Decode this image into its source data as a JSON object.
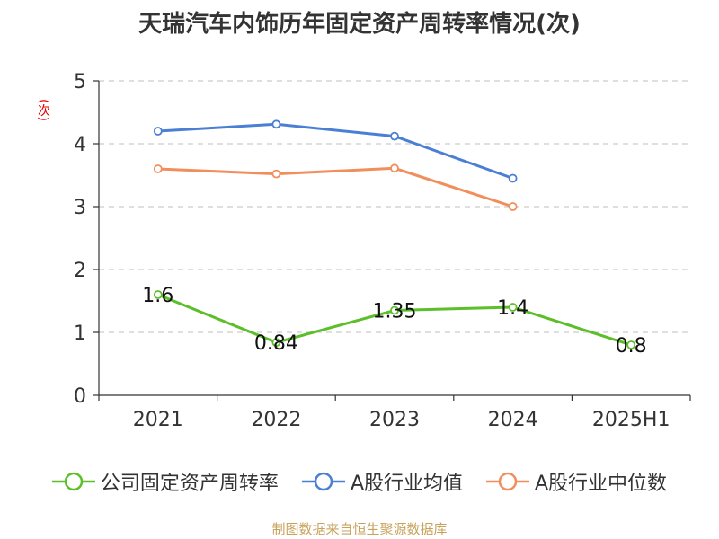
{
  "title": "天瑞汽车内饰历年固定资产周转率情况(次)",
  "source": "制图数据来自恒生聚源数据库",
  "chart_data": {
    "type": "line",
    "title": "天瑞汽车内饰历年固定资产周转率情况(次)",
    "ylabel": "(次)",
    "xlabel": "",
    "categories": [
      "2021",
      "2022",
      "2023",
      "2024",
      "2025H1"
    ],
    "ylim": [
      0,
      5
    ],
    "yticks": [
      0,
      1,
      2,
      3,
      4,
      5
    ],
    "grid": true,
    "legend_position": "bottom",
    "series": [
      {
        "name": "公司固定资产周转率",
        "color": "#5cbf2a",
        "values": [
          1.6,
          0.84,
          1.35,
          1.4,
          0.8
        ],
        "labels": [
          "1.6",
          "0.84",
          "1.35",
          "1.4",
          "0.8"
        ]
      },
      {
        "name": "A股行业均值",
        "color": "#4a7fd4",
        "values": [
          4.2,
          4.31,
          4.12,
          3.45,
          null
        ]
      },
      {
        "name": "A股行业中位数",
        "color": "#f28e5b",
        "values": [
          3.6,
          3.52,
          3.61,
          3.0,
          null
        ]
      }
    ]
  }
}
